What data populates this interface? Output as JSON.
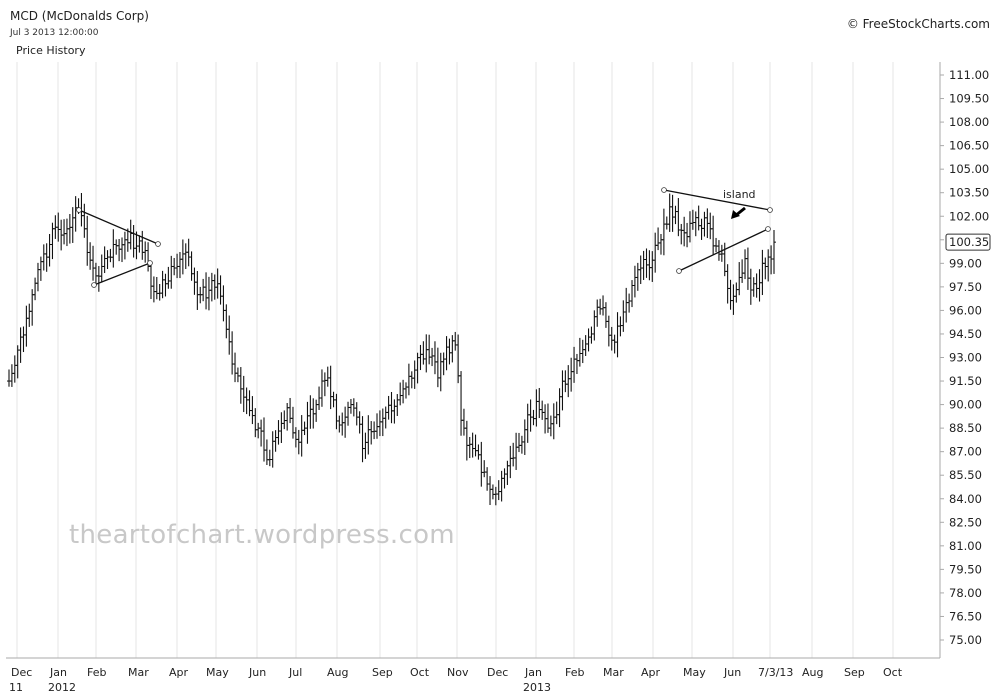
{
  "header": {
    "symbol": "MCD (McDonalds Corp)",
    "datetime": "Jul 3 2013 12:00:00",
    "panel_label": "Price History",
    "credit": "© FreeStockCharts.com"
  },
  "watermark": "theartofchart.wordpress.com",
  "colors": {
    "bars": "#111111",
    "grid": "#e6e6e6",
    "watermark": "#c8c8c8",
    "axis": "#aaaaaa"
  },
  "chart_data": {
    "type": "bar",
    "subtype": "ohlc",
    "ylim": [
      73.5,
      112
    ],
    "y_ticks": [
      "111.00",
      "109.50",
      "108.00",
      "106.50",
      "105.00",
      "103.50",
      "102.00",
      "100.50",
      "99.00",
      "97.50",
      "96.00",
      "94.50",
      "93.00",
      "91.50",
      "90.00",
      "88.50",
      "87.00",
      "85.50",
      "84.00",
      "82.50",
      "81.00",
      "79.50",
      "78.00",
      "76.50",
      "75.00"
    ],
    "x_ticks": [
      {
        "label": "Dec",
        "sub": "11"
      },
      {
        "label": "Jan",
        "sub": "2012"
      },
      {
        "label": "Feb",
        "sub": ""
      },
      {
        "label": "Mar",
        "sub": ""
      },
      {
        "label": "Apr",
        "sub": ""
      },
      {
        "label": "May",
        "sub": ""
      },
      {
        "label": "Jun",
        "sub": ""
      },
      {
        "label": "Jul",
        "sub": ""
      },
      {
        "label": "Aug",
        "sub": ""
      },
      {
        "label": "Sep",
        "sub": ""
      },
      {
        "label": "Oct",
        "sub": ""
      },
      {
        "label": "Nov",
        "sub": ""
      },
      {
        "label": "Dec",
        "sub": ""
      },
      {
        "label": "Jan",
        "sub": "2013"
      },
      {
        "label": "Feb",
        "sub": ""
      },
      {
        "label": "Mar",
        "sub": ""
      },
      {
        "label": "Apr",
        "sub": ""
      },
      {
        "label": "May",
        "sub": ""
      },
      {
        "label": "Jun",
        "sub": ""
      },
      {
        "label": "7/3/13",
        "sub": ""
      },
      {
        "label": "Aug",
        "sub": ""
      },
      {
        "label": "Sep",
        "sub": ""
      },
      {
        "label": "Oct",
        "sub": ""
      }
    ],
    "last_price": "100.35",
    "grid": true,
    "series": [
      {
        "closes": [
          91.5,
          92.5,
          94.3,
          95.5,
          97.0,
          98.6,
          99.6,
          100.2,
          101.3,
          100.8,
          101.2,
          101.9,
          102.5,
          101.2,
          99.2,
          98.2,
          98.8,
          99.4,
          100.2,
          99.9,
          100.5,
          100.9,
          100.1,
          99.7,
          98.8,
          97.2,
          97.1,
          97.7,
          98.8,
          98.8,
          99.6,
          99.4,
          97.8,
          97.0,
          96.8,
          97.9,
          97.7,
          96.0,
          94.0,
          92.0,
          91.0,
          90.3,
          89.3,
          88.5,
          87.1,
          86.5,
          87.9,
          88.8,
          89.8,
          88.2,
          87.6,
          88.5,
          89.7,
          90.0,
          91.5,
          91.7,
          90.3,
          88.7,
          89.2,
          90.0,
          89.2,
          87.2,
          88.4,
          88.3,
          88.9,
          89.5,
          89.6,
          90.3,
          91.0,
          91.8,
          92.2,
          93.2,
          93.5,
          93.1,
          91.7,
          92.9,
          93.3,
          93.8,
          89.0,
          87.4,
          87.2,
          86.8,
          85.7,
          84.6,
          84.3,
          85.3,
          86.1,
          86.6,
          87.4,
          88.4,
          89.2,
          90.2,
          89.5,
          88.5,
          89.2,
          90.5,
          91.3,
          92.1,
          92.8,
          93.5,
          94.3,
          95.6,
          96.1,
          95.3,
          94.1,
          95.0,
          95.9,
          96.6,
          98.1,
          98.7,
          98.9,
          99.2,
          100.3,
          101.5,
          102.6,
          102.3,
          101.1,
          100.7,
          101.6,
          101.4,
          101.9,
          101.2,
          100.1,
          99.6,
          97.4,
          96.9,
          98.1,
          99.3,
          97.3,
          97.4,
          99.0,
          99.4,
          100.35
        ]
      }
    ],
    "annotations": [
      {
        "text": "island",
        "type": "label"
      },
      {
        "type": "trendlines",
        "description": "symmetrical triangle early 2012; wedge / island pattern Apr-Jun 2013"
      }
    ]
  }
}
